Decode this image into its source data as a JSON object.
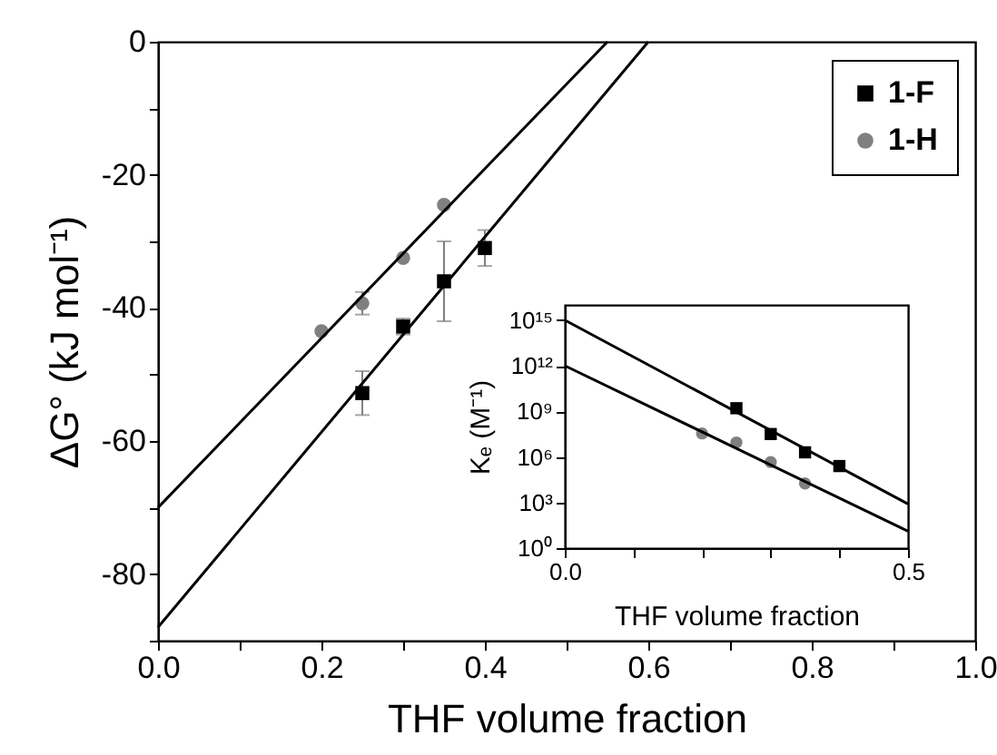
{
  "chart_data": [
    {
      "type": "scatter",
      "xlabel": "THF volume fraction",
      "ylabel": "ΔG° (kJ mol⁻¹)",
      "xlim": [
        0,
        1
      ],
      "ylim": [
        -90,
        0
      ],
      "xticks": [
        {
          "value": 0,
          "label": "0.0"
        },
        {
          "value": 0.1,
          "label": null
        },
        {
          "value": 0.2,
          "label": "0.2"
        },
        {
          "value": 0.3,
          "label": null
        },
        {
          "value": 0.4,
          "label": "0.4"
        },
        {
          "value": 0.5,
          "label": null
        },
        {
          "value": 0.6,
          "label": "0.6"
        },
        {
          "value": 0.7,
          "label": null
        },
        {
          "value": 0.8,
          "label": "0.8"
        },
        {
          "value": 0.9,
          "label": null
        },
        {
          "value": 1,
          "label": "1.0"
        }
      ],
      "yticks": [
        {
          "value": -90,
          "label": null
        },
        -80,
        {
          "value": -70,
          "label": null
        },
        -60,
        {
          "value": -50,
          "label": null
        },
        -40,
        {
          "value": -30,
          "label": null
        },
        -20,
        {
          "value": -10,
          "label": null
        },
        0
      ],
      "legend": "top right",
      "series": [
        {
          "name": "1-F",
          "color": "#000000",
          "marker": "square",
          "x": [
            0.25,
            0.3,
            0.35,
            0.4
          ],
          "values": [
            -52.8,
            -42.8,
            -36,
            -31
          ],
          "errors": [
            3.3,
            1.2,
            6,
            2.7
          ]
        },
        {
          "name": "1-H",
          "color": "#808080",
          "marker": "circle",
          "x": [
            0.2,
            0.25,
            0.3,
            0.35
          ],
          "values": [
            -43.5,
            -39.3,
            -32.5,
            -24.5
          ],
          "errors": [
            null,
            1.7,
            null,
            null
          ]
        },
        {
          "type": "line",
          "color": "#000000",
          "x": [
            0,
            0.6
          ],
          "values": [
            -88,
            0
          ]
        },
        {
          "type": "line",
          "color": "#000000",
          "x": [
            0,
            0.55
          ],
          "values": [
            -70,
            0
          ]
        }
      ]
    },
    {
      "type": "scatter",
      "xlabel": "THF volume fraction",
      "ylabel": "Kₑ (M⁻¹)",
      "log": true,
      "xlim": [
        0,
        0.5
      ],
      "ylim": [
        1,
        1e+16
      ],
      "xticks": [
        {
          "value": 0,
          "label": "0.0"
        },
        {
          "value": 0.1,
          "label": null
        },
        {
          "value": 0.2,
          "label": null
        },
        {
          "value": 0.3,
          "label": null
        },
        {
          "value": 0.4,
          "label": null
        },
        {
          "value": 0.5,
          "label": "0.5"
        }
      ],
      "yticks": [
        {
          "value": 1,
          "label": "10⁰"
        },
        {
          "value": 1000,
          "label": "10³"
        },
        {
          "value": 1000000,
          "label": "10⁶"
        },
        {
          "value": 1000000000,
          "label": "10⁹"
        },
        {
          "value": 1000000000000.0,
          "label": "10¹²"
        },
        {
          "value": 1000000000000000.0,
          "label": "10¹⁵"
        }
      ],
      "series": [
        {
          "color": "#000000",
          "marker": "square",
          "x": [
            0.25,
            0.3,
            0.35,
            0.4
          ],
          "values": [
            1600000000.0,
            32000000.0,
            2000000.0,
            250000.0
          ]
        },
        {
          "color": "#808080",
          "marker": "circle",
          "x": [
            0.2,
            0.25,
            0.3,
            0.35
          ],
          "values": [
            35000000.0,
            8900000.0,
            460000.0,
            18000.0
          ]
        },
        {
          "type": "line",
          "color": "#000000",
          "x": [
            0,
            0.5
          ],
          "values": [
            1000000000000000.0,
            800
          ]
        },
        {
          "type": "line",
          "color": "#000000",
          "x": [
            0,
            0.5
          ],
          "values": [
            1000000000000.0,
            13
          ]
        }
      ]
    }
  ]
}
